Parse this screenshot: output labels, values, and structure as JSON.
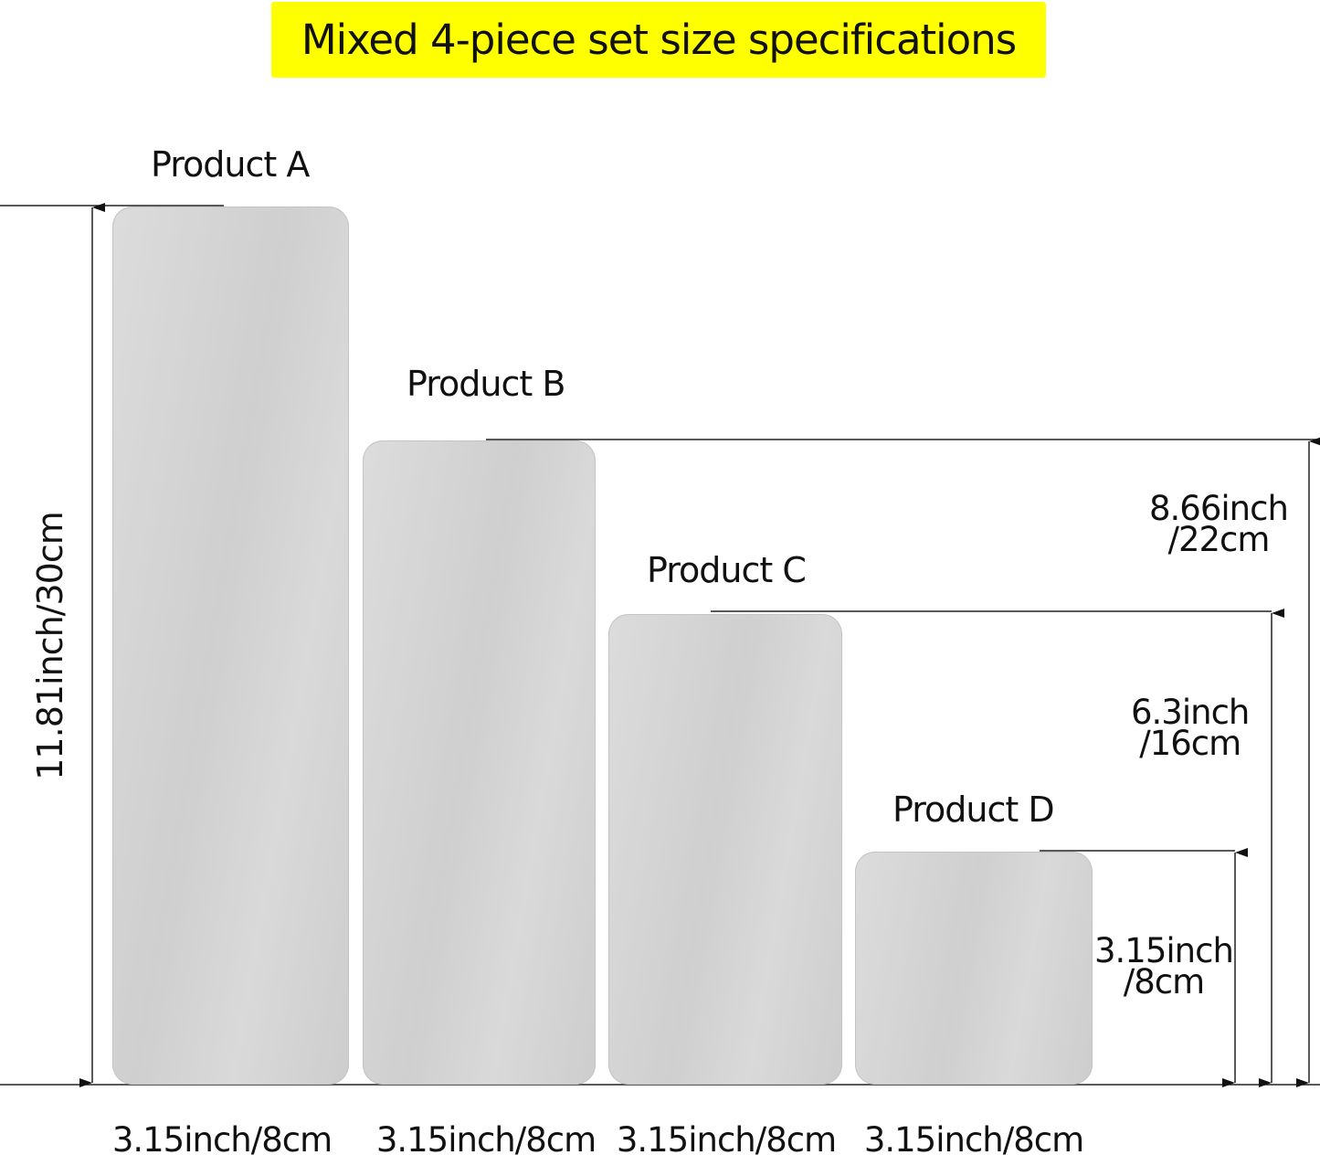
{
  "title": "Mixed 4-piece set size specifications",
  "banner_color": "#ffff00",
  "plate_color": "#d5d5d5",
  "products": [
    {
      "name": "Product A",
      "height": "11.81inch/30cm",
      "width": "3.15inch/8cm"
    },
    {
      "name": "Product B",
      "height_inch": "8.66inch",
      "height_cm": "/22cm",
      "width": "3.15inch/8cm"
    },
    {
      "name": "Product C",
      "height_inch": "6.3inch",
      "height_cm": "/16cm",
      "width": "3.15inch/8cm"
    },
    {
      "name": "Product D",
      "height_inch": "3.15inch",
      "height_cm": "/8cm",
      "width": "3.15inch/8cm"
    }
  ]
}
